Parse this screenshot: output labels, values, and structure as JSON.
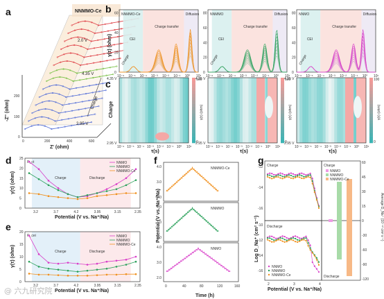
{
  "labels": {
    "a": "a",
    "b": "b",
    "c": "c",
    "d": "d",
    "e": "e",
    "f": "f",
    "g": "g"
  },
  "panel_a": {
    "title": "NNMMO-Ce",
    "v_top": "2.0 V",
    "v_mid": "4.35 V",
    "v_bot": "2.95 V",
    "charge": "Charge",
    "ylabel": "-Z'' (ohm)",
    "xlabel": "Z' (ohm)",
    "yticks": [
      "0",
      "100",
      "200"
    ],
    "xticks": [
      "0",
      "200",
      "400",
      "600"
    ],
    "colors": {
      "blue": "#5b74d8",
      "green": "#7cc24a",
      "red": "#e0474c"
    }
  },
  "panel_b": {
    "ylabel": "γ(τ) (ohm)",
    "xlabel": "τ(s)",
    "xticks": [
      "10⁻⁶",
      "10⁻⁵",
      "10⁻⁴",
      "10⁻³",
      "10⁻²",
      "10⁻¹",
      "10⁰",
      "10¹"
    ],
    "plots": [
      {
        "name": "NNMMO-Ce",
        "color": "#f0901e",
        "yticks": [
          "0",
          "20",
          "40",
          "60"
        ],
        "regions": [
          "CEI",
          "Charge transfer",
          "Diffusion"
        ],
        "charge": "Charge"
      },
      {
        "name": "NNMMO",
        "color": "#2aa05a",
        "yticks": [
          "0",
          "20",
          "40",
          "60",
          "80"
        ],
        "regions": [
          "CEI",
          "Charge transfer",
          "Diffusion"
        ],
        "charge": "Charge"
      },
      {
        "name": "NNMO",
        "color": "#d83cc8",
        "yticks": [
          "0",
          "20",
          "40",
          "60",
          "80"
        ],
        "regions": [
          "CEI",
          "Charge transfer",
          "Diffusion"
        ],
        "charge": "Charge"
      }
    ]
  },
  "panel_c": {
    "ylabel": "Charge",
    "xlabel": "τ(s)",
    "ytop": "4.35 V",
    "ybot": "2.95 V",
    "cbar_label": "γ(τ) (ohm)",
    "cbar_max": "100",
    "cbar_min": "0",
    "xticks": [
      "10⁻⁶",
      "10⁻⁵",
      "10⁻⁴",
      "10⁻³",
      "10⁻²",
      "10⁻¹",
      "10⁰",
      "10¹"
    ]
  },
  "panel_d": {
    "corner": "R_ct",
    "ylabel": "γ(τ) (ohm)",
    "xlabel": "Potential (V vs. Na⁺/Na)",
    "charge": "Charge",
    "discharge": "Discharge",
    "xticks": [
      "3.2",
      "3.7",
      "4.2",
      "3.95",
      "3.15",
      "2.35"
    ],
    "yticks": [
      "0",
      "5",
      "10",
      "15",
      "20",
      "25"
    ],
    "legend": [
      "NNMO",
      "NNMMO",
      "NNMMO-Ce"
    ]
  },
  "panel_e": {
    "corner": "R_cei",
    "ylabel": "γ(τ) (ohm)",
    "xlabel": "Potential (V vs. Na⁺/Na)",
    "charge": "Charge",
    "discharge": "Discharge",
    "xticks": [
      "3.2",
      "3.7",
      "4.2",
      "3.95",
      "3.15",
      "2.35"
    ],
    "yticks": [
      "0",
      "5",
      "10",
      "15",
      "20"
    ],
    "legend": [
      "NNMO",
      "NNMMO",
      "NNMMO-Ce"
    ]
  },
  "panel_f": {
    "ylabel": "Potential (V vs. Na⁺/Na)",
    "xlabel": "Time (h)",
    "xticks": [
      "0",
      "40",
      "80",
      "120",
      "160"
    ],
    "plots": [
      {
        "name": "NNMMO-Ce",
        "color": "#f0901e",
        "yticks": [
          "2.0",
          "3.0",
          "4.0"
        ]
      },
      {
        "name": "NNMMO",
        "color": "#2aa05a",
        "yticks": [
          "2.0",
          "3.0",
          "4.0"
        ]
      },
      {
        "name": "NNMO",
        "color": "#d83cc8",
        "yticks": [
          "2.0",
          "3.0",
          "4.0"
        ]
      }
    ]
  },
  "panel_g": {
    "ylabel_left": "Log D_Na⁺ (cm² s⁻¹)",
    "ylabel_right": "Average D_Na⁺ (10⁻¹² cm² s⁻¹)",
    "xlabel": "Potential (V vs. Na⁺/Na)",
    "charge_left": "Charge",
    "discharge_left": "Discharge",
    "charge_right": "Charge",
    "discharge_right": "Discharge",
    "yticks_top": [
      "-12",
      "-14",
      "-16"
    ],
    "yticks_bot": [
      "-10",
      "-12",
      "-14",
      "-16"
    ],
    "xticks": [
      "2",
      "3",
      "4"
    ],
    "rticks": [
      "60",
      "45",
      "30",
      "15",
      "0",
      "-30",
      "-60",
      "-90",
      "-120"
    ],
    "legend": [
      "NNMO",
      "NNMMO",
      "NNMMO-Ce"
    ],
    "bar_legend": [
      "NNMO",
      "NNMMO",
      "NNMMO-Ce"
    ]
  },
  "watermark": "@ 六九研究院"
}
